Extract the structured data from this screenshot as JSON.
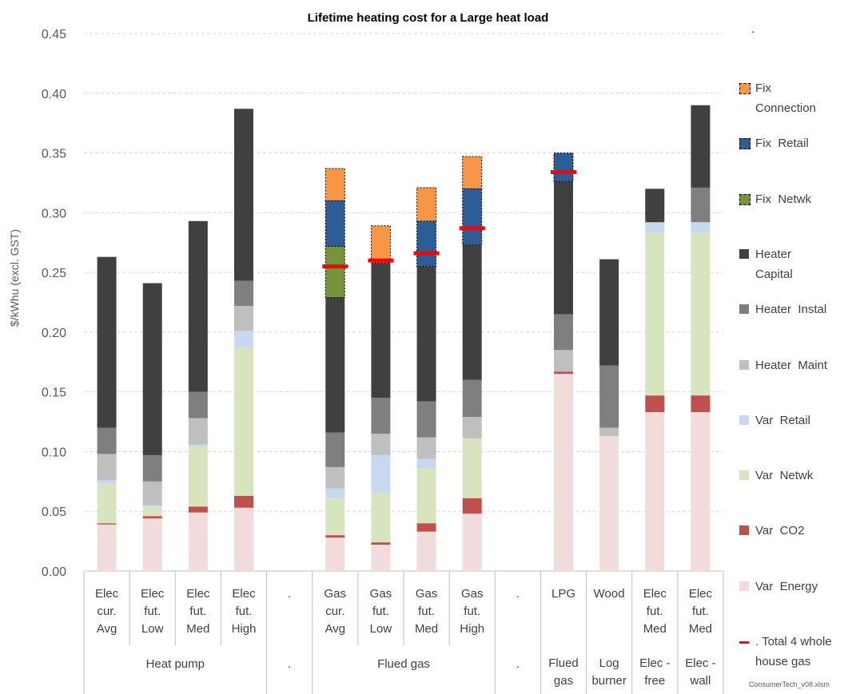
{
  "chart_data": {
    "type": "bar",
    "stacked": true,
    "title": "Lifetime heating cost for a Large heat load",
    "ylabel": "$/kWhu (excl. GST)",
    "ylim": [
      0,
      0.45
    ],
    "yticks": [
      "0.00",
      "0.05",
      "0.10",
      "0.15",
      "0.20",
      "0.25",
      "0.30",
      "0.35",
      "0.40",
      "0.45"
    ],
    "grid": true,
    "legend_position": "right",
    "top_right_mark": ".",
    "footnote": "ConsumerTech_v08.xlsm",
    "categories": [
      {
        "label": [
          "Elec",
          "cur.",
          "Avg"
        ],
        "group": "Heat pump"
      },
      {
        "label": [
          "Elec",
          "fut.",
          "Low"
        ],
        "group": "Heat pump"
      },
      {
        "label": [
          "Elec",
          "fut.",
          "Med"
        ],
        "group": "Heat pump"
      },
      {
        "label": [
          "Elec",
          "fut.",
          "High"
        ],
        "group": "Heat pump"
      },
      {
        "label": [
          "."
        ],
        "group": "."
      },
      {
        "label": [
          "Gas",
          "cur.",
          "Avg"
        ],
        "group": "Flued gas"
      },
      {
        "label": [
          "Gas",
          "fut.",
          "Low"
        ],
        "group": "Flued gas"
      },
      {
        "label": [
          "Gas",
          "fut.",
          "Med"
        ],
        "group": "Flued gas"
      },
      {
        "label": [
          "Gas",
          "fut.",
          "High"
        ],
        "group": "Flued gas"
      },
      {
        "label": [
          "."
        ],
        "group": "."
      },
      {
        "label": [
          "LPG"
        ],
        "group": "Flued gas"
      },
      {
        "label": [
          "Wood"
        ],
        "group": "Log burner"
      },
      {
        "label": [
          "Elec",
          "fut.",
          "Med"
        ],
        "group": "Elec - free"
      },
      {
        "label": [
          "Elec",
          "fut.",
          "Med"
        ],
        "group": "Elec - wall"
      }
    ],
    "groups": [
      {
        "label": "Heat pump",
        "from": 0,
        "to": 3
      },
      {
        "label": ".",
        "from": 4,
        "to": 4
      },
      {
        "label": "Flued gas",
        "from": 5,
        "to": 8
      },
      {
        "label": ".",
        "from": 9,
        "to": 9
      },
      {
        "label": "Flued gas",
        "from": 10,
        "to": 10,
        "lines": [
          "Flued",
          "gas"
        ]
      },
      {
        "label": "Log burner",
        "from": 11,
        "to": 11,
        "lines": [
          "Log",
          "burner"
        ]
      },
      {
        "label": "Elec - free",
        "from": 12,
        "to": 12,
        "lines": [
          "Elec -",
          "free"
        ]
      },
      {
        "label": "Elec - wall",
        "from": 13,
        "to": 13,
        "lines": [
          "Elec -",
          "wall"
        ]
      }
    ],
    "series": [
      {
        "name": "Var Energy",
        "color": "#f2dcdb",
        "values": [
          0.039,
          0.044,
          0.049,
          0.053,
          0,
          0.028,
          0.022,
          0.033,
          0.048,
          0,
          0.165,
          0.113,
          0.133,
          0.133
        ]
      },
      {
        "name": "Var CO2",
        "color": "#c0504d",
        "values": [
          0.001,
          0.002,
          0.005,
          0.01,
          0,
          0.002,
          0.002,
          0.007,
          0.013,
          0,
          0.002,
          0,
          0.014,
          0.014
        ]
      },
      {
        "name": "Var Netwk",
        "color": "#d7e4bd",
        "values": [
          0.033,
          0.008,
          0.05,
          0.124,
          0,
          0.031,
          0.041,
          0.046,
          0.05,
          0,
          0,
          0,
          0.136,
          0.136
        ]
      },
      {
        "name": "Var Retail",
        "color": "#c6d9f1",
        "values": [
          0.003,
          0.001,
          0.002,
          0.014,
          0,
          0.008,
          0.032,
          0.008,
          0,
          0,
          0,
          0,
          0.009,
          0.009
        ]
      },
      {
        "name": "Heater Maint",
        "color": "#bfbfbf",
        "values": [
          0.022,
          0.02,
          0.022,
          0.021,
          0,
          0.018,
          0.018,
          0.018,
          0.018,
          0,
          0.018,
          0.007,
          0,
          0
        ]
      },
      {
        "name": "Heater Instal",
        "color": "#7f7f7f",
        "values": [
          0.022,
          0.022,
          0.022,
          0.021,
          0,
          0.029,
          0.03,
          0.03,
          0.031,
          0,
          0.03,
          0.052,
          0,
          0.029
        ]
      },
      {
        "name": "Heater Capital",
        "color": "#404040",
        "values": [
          0.143,
          0.144,
          0.143,
          0.144,
          0,
          0.113,
          0.113,
          0.113,
          0.113,
          0,
          0.111,
          0.089,
          0.028,
          0.069
        ]
      },
      {
        "name": "Fix Netwk",
        "color": "#77933c",
        "dashed": true,
        "values": [
          0,
          0,
          0,
          0,
          0,
          0.043,
          0,
          0,
          0,
          0,
          0,
          0,
          0,
          0
        ]
      },
      {
        "name": "Fix Retail",
        "color": "#2e5d95",
        "dashed": true,
        "values": [
          0,
          0,
          0,
          0,
          0,
          0.038,
          0,
          0.038,
          0.047,
          0,
          0.024,
          0,
          0,
          0
        ]
      },
      {
        "name": "Fix Connection",
        "color": "#f79646",
        "dashed": true,
        "values": [
          0,
          0,
          0,
          0,
          0,
          0.027,
          0.031,
          0.028,
          0.027,
          0,
          0,
          0,
          0,
          0
        ]
      }
    ],
    "total_marker": {
      "name": ". Total 4 whole house gas",
      "color": "#ff0000",
      "values": [
        null,
        null,
        null,
        null,
        null,
        0.255,
        0.26,
        0.266,
        0.287,
        null,
        0.334,
        null,
        null,
        null
      ]
    }
  },
  "legend": [
    {
      "lines": [
        "Fix",
        "Connection"
      ],
      "color": "#f79646",
      "dashed": true
    },
    {
      "lines": [
        "Fix  Retail"
      ],
      "color": "#2e5d95",
      "dashed": true
    },
    {
      "lines": [
        "Fix  Netwk"
      ],
      "color": "#77933c",
      "dashed": true
    },
    {
      "lines": [
        "Heater",
        "Capital"
      ],
      "color": "#404040"
    },
    {
      "lines": [
        "Heater  Instal"
      ],
      "color": "#7f7f7f"
    },
    {
      "lines": [
        "Heater  Maint"
      ],
      "color": "#bfbfbf"
    },
    {
      "lines": [
        "Var  Retail"
      ],
      "color": "#c6d9f1"
    },
    {
      "lines": [
        "Var  Netwk"
      ],
      "color": "#d7e4bd"
    },
    {
      "lines": [
        "Var  CO2"
      ],
      "color": "#c0504d"
    },
    {
      "lines": [
        "Var  Energy"
      ],
      "color": "#f2dcdb"
    },
    {
      "lines": [
        ". Total 4 whole",
        "house gas"
      ],
      "color": "#ff0000",
      "marker": "line"
    }
  ]
}
